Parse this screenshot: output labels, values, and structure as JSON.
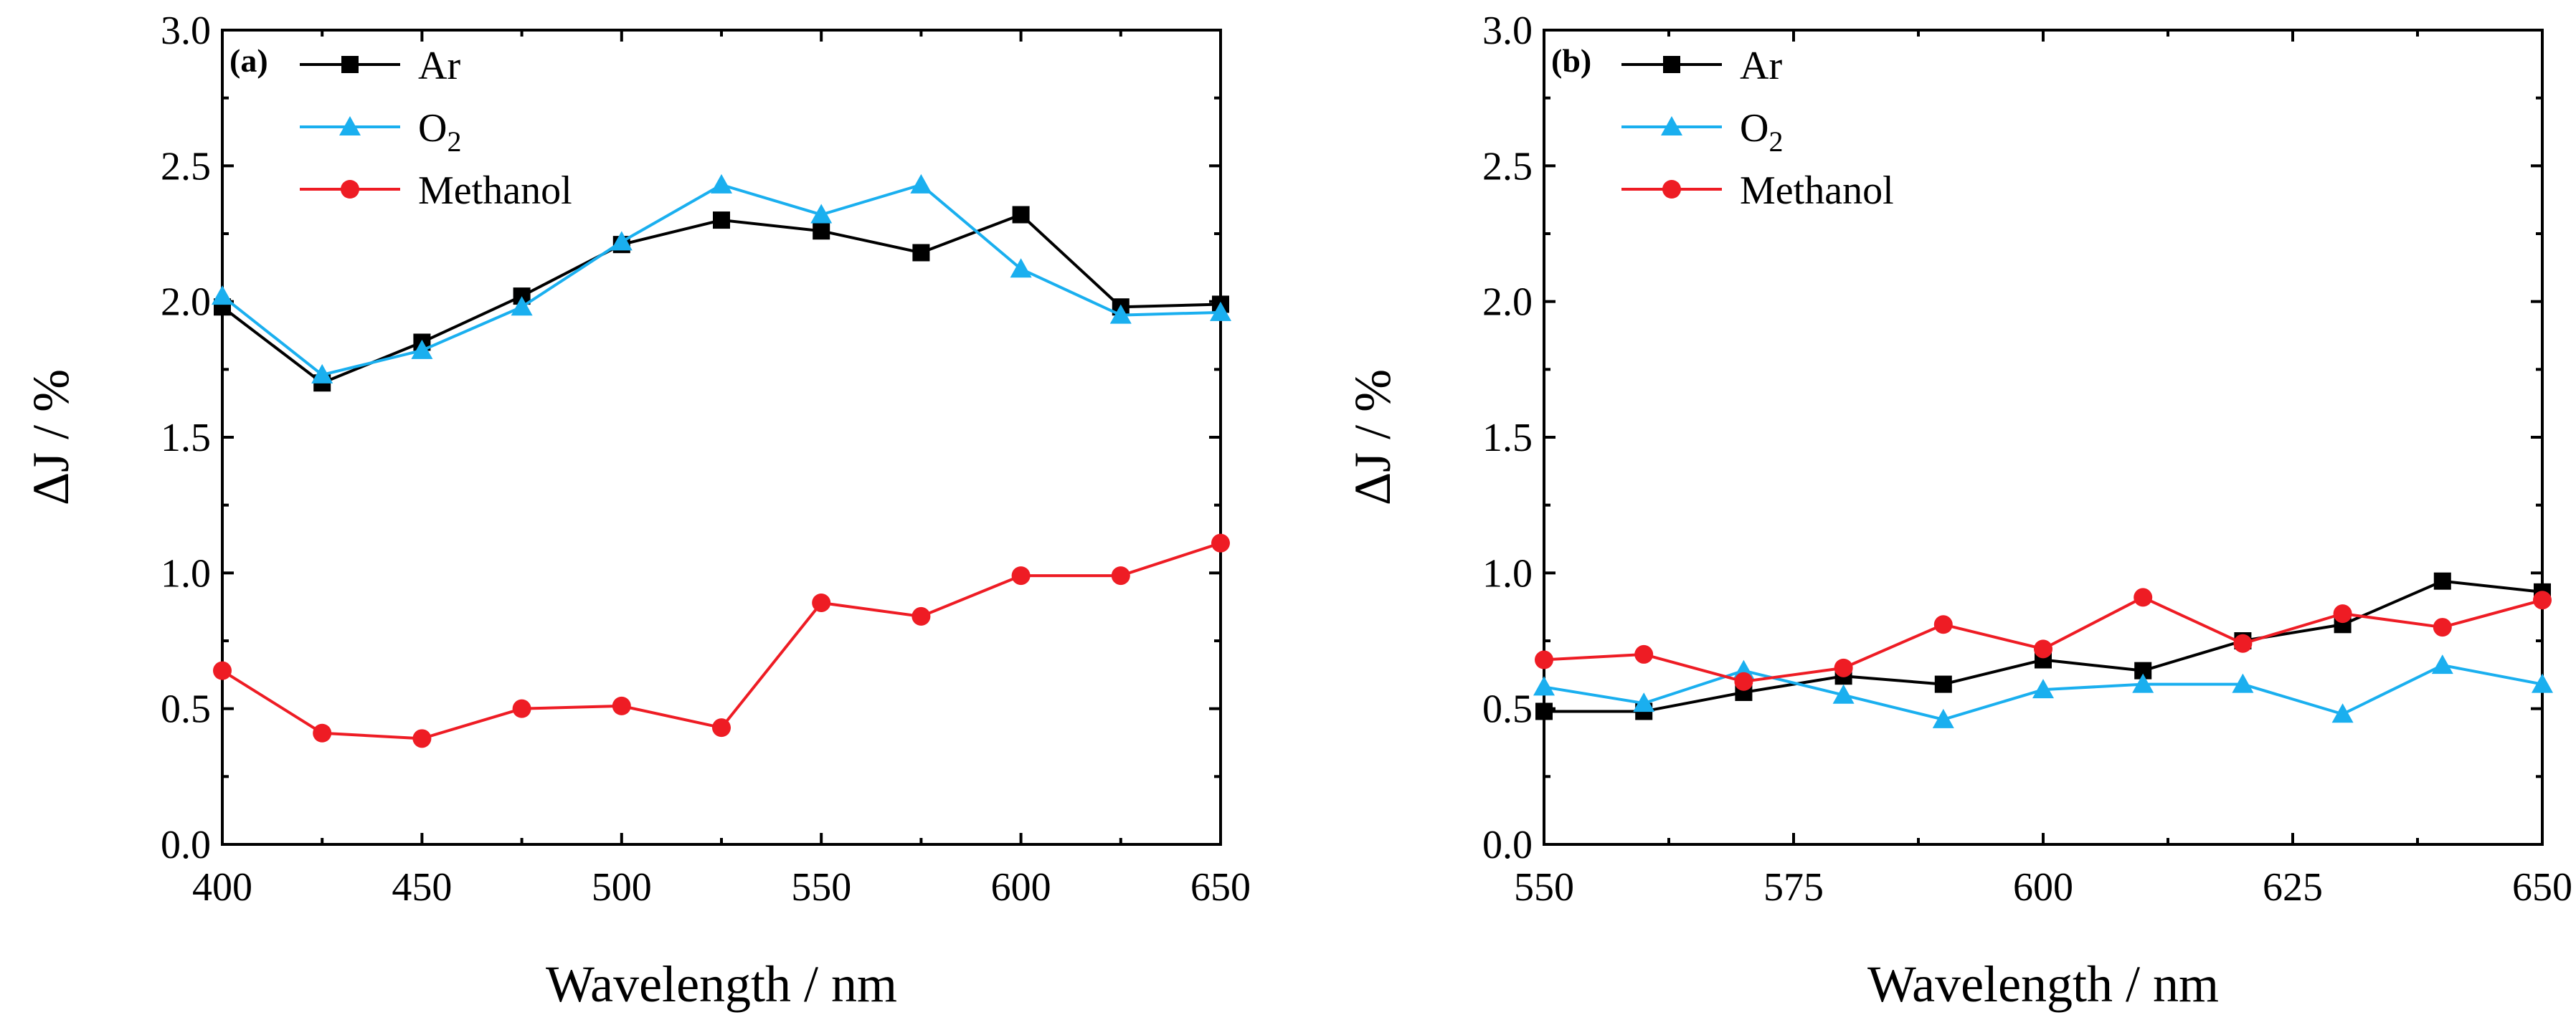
{
  "chart_data": [
    {
      "type": "line",
      "panel_label": "(a)",
      "xlabel": "Wavelength / nm",
      "ylabel": "ΔJ / %",
      "xlim": [
        400,
        650
      ],
      "ylim": [
        0.0,
        3.0
      ],
      "xticks": [
        "400",
        "450",
        "500",
        "550",
        "600",
        "650"
      ],
      "yticks": [
        "0.0",
        "0.5",
        "1.0",
        "1.5",
        "2.0",
        "2.5",
        "3.0"
      ],
      "legend_position": "top-left",
      "series": [
        {
          "name": "Ar",
          "name_base": "Ar",
          "name_sub": "",
          "color": "#000000",
          "marker": "square",
          "x": [
            400,
            425,
            450,
            475,
            500,
            525,
            550,
            575,
            600,
            625,
            650
          ],
          "y": [
            1.98,
            1.7,
            1.85,
            2.02,
            2.21,
            2.3,
            2.26,
            2.18,
            2.32,
            1.98,
            1.99
          ]
        },
        {
          "name": "O2",
          "name_base": "O",
          "name_sub": "2",
          "color": "#1AAFEF",
          "marker": "triangle",
          "x": [
            400,
            425,
            450,
            475,
            500,
            525,
            550,
            575,
            600,
            625,
            650
          ],
          "y": [
            2.02,
            1.73,
            1.82,
            1.98,
            2.22,
            2.43,
            2.32,
            2.43,
            2.12,
            1.95,
            1.96
          ]
        },
        {
          "name": "Methanol",
          "name_base": "Methanol",
          "name_sub": "",
          "color": "#EE1C24",
          "marker": "circle",
          "x": [
            400,
            425,
            450,
            475,
            500,
            525,
            550,
            575,
            600,
            625,
            650
          ],
          "y": [
            0.64,
            0.41,
            0.39,
            0.5,
            0.51,
            0.43,
            0.89,
            0.84,
            0.99,
            0.99,
            1.11
          ]
        }
      ]
    },
    {
      "type": "line",
      "panel_label": "(b)",
      "xlabel": "Wavelength / nm",
      "ylabel": "ΔJ / %",
      "xlim": [
        550,
        650
      ],
      "ylim": [
        0.0,
        3.0
      ],
      "xticks": [
        "550",
        "575",
        "600",
        "625",
        "650"
      ],
      "yticks": [
        "0.0",
        "0.5",
        "1.0",
        "1.5",
        "2.0",
        "2.5",
        "3.0"
      ],
      "legend_position": "top-left",
      "series": [
        {
          "name": "Ar",
          "name_base": "Ar",
          "name_sub": "",
          "color": "#000000",
          "marker": "square",
          "x": [
            550,
            560,
            570,
            580,
            590,
            600,
            610,
            620,
            630,
            640,
            650
          ],
          "y": [
            0.49,
            0.49,
            0.56,
            0.62,
            0.59,
            0.68,
            0.64,
            0.75,
            0.81,
            0.97,
            0.93
          ]
        },
        {
          "name": "O2",
          "name_base": "O",
          "name_sub": "2",
          "color": "#1AAFEF",
          "marker": "triangle",
          "x": [
            550,
            560,
            570,
            580,
            590,
            600,
            610,
            620,
            630,
            640,
            650
          ],
          "y": [
            0.58,
            0.52,
            0.64,
            0.55,
            0.46,
            0.57,
            0.59,
            0.59,
            0.48,
            0.66,
            0.59
          ]
        },
        {
          "name": "Methanol",
          "name_base": "Methanol",
          "name_sub": "",
          "color": "#EE1C24",
          "marker": "circle",
          "x": [
            550,
            560,
            570,
            580,
            590,
            600,
            610,
            620,
            630,
            640,
            650
          ],
          "y": [
            0.68,
            0.7,
            0.6,
            0.65,
            0.81,
            0.72,
            0.91,
            0.74,
            0.85,
            0.8,
            0.9
          ]
        }
      ]
    }
  ]
}
